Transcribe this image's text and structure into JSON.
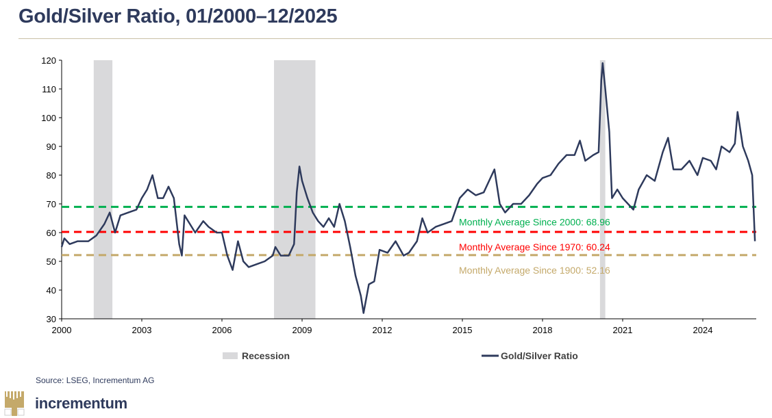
{
  "chart_data": {
    "type": "line",
    "title": "Gold/Silver Ratio, 01/2000–12/2025",
    "xlim": [
      2000,
      2026
    ],
    "ylim": [
      30,
      120
    ],
    "x_ticks": [
      "2000",
      "2003",
      "2006",
      "2009",
      "2012",
      "2015",
      "2018",
      "2021",
      "2024"
    ],
    "y_ticks": [
      "30",
      "40",
      "50",
      "60",
      "70",
      "80",
      "90",
      "100",
      "110",
      "120"
    ],
    "grid": false,
    "legend_placement": "bottom",
    "recessions": [
      [
        2001.2,
        2001.9
      ],
      [
        2007.95,
        2009.5
      ],
      [
        2020.15,
        2020.35
      ]
    ],
    "reference_lines": [
      {
        "label": "Monthly Average Since 2000: 68.96",
        "value": 68.96,
        "color": "#00b050"
      },
      {
        "label": "Monthly Average Since 1970: 60.24",
        "value": 60.24,
        "color": "#ff0000"
      },
      {
        "label": "Monthly Average Since 1900: 52.16",
        "value": 52.16,
        "color": "#c4a96a"
      }
    ],
    "series": [
      {
        "name": "Gold/Silver Ratio",
        "color": "#2e3a5c",
        "x": [
          2000.0,
          2000.1,
          2000.3,
          2000.6,
          2001.0,
          2001.3,
          2001.6,
          2001.8,
          2002.0,
          2002.2,
          2002.5,
          2002.8,
          2003.0,
          2003.2,
          2003.4,
          2003.6,
          2003.8,
          2004.0,
          2004.2,
          2004.4,
          2004.5,
          2004.6,
          2004.8,
          2005.0,
          2005.3,
          2005.5,
          2005.8,
          2006.0,
          2006.2,
          2006.4,
          2006.6,
          2006.8,
          2007.0,
          2007.3,
          2007.6,
          2007.9,
          2008.0,
          2008.2,
          2008.5,
          2008.7,
          2008.8,
          2008.9,
          2009.0,
          2009.2,
          2009.4,
          2009.6,
          2009.8,
          2010.0,
          2010.2,
          2010.4,
          2010.6,
          2010.8,
          2011.0,
          2011.2,
          2011.3,
          2011.5,
          2011.7,
          2011.9,
          2012.2,
          2012.5,
          2012.8,
          2013.0,
          2013.3,
          2013.5,
          2013.7,
          2014.0,
          2014.3,
          2014.6,
          2014.9,
          2015.2,
          2015.5,
          2015.8,
          2016.0,
          2016.2,
          2016.4,
          2016.6,
          2016.9,
          2017.2,
          2017.5,
          2017.8,
          2018.0,
          2018.3,
          2018.6,
          2018.9,
          2019.2,
          2019.4,
          2019.6,
          2019.9,
          2020.1,
          2020.2,
          2020.25,
          2020.35,
          2020.5,
          2020.6,
          2020.8,
          2021.0,
          2021.2,
          2021.4,
          2021.6,
          2021.9,
          2022.2,
          2022.5,
          2022.7,
          2022.9,
          2023.2,
          2023.5,
          2023.8,
          2024.0,
          2024.3,
          2024.5,
          2024.7,
          2025.0,
          2025.2,
          2025.3,
          2025.5,
          2025.7,
          2025.85,
          2025.95
        ],
        "values": [
          55,
          58,
          56,
          57,
          57,
          59,
          63,
          67,
          60,
          66,
          67,
          68,
          72,
          75,
          80,
          72,
          72,
          76,
          72,
          56,
          52,
          66,
          63,
          60,
          64,
          62,
          60,
          60,
          52,
          47,
          57,
          50,
          48,
          49,
          50,
          52,
          55,
          52,
          52,
          56,
          74,
          83,
          78,
          72,
          67,
          64,
          62,
          65,
          62,
          70,
          64,
          55,
          45,
          38,
          32,
          42,
          43,
          54,
          53,
          57,
          52,
          53,
          57,
          65,
          60,
          62,
          63,
          64,
          72,
          75,
          73,
          74,
          78,
          82,
          70,
          67,
          70,
          70,
          73,
          77,
          79,
          80,
          84,
          87,
          87,
          92,
          85,
          87,
          88,
          113,
          119,
          110,
          95,
          72,
          75,
          72,
          70,
          68,
          75,
          80,
          78,
          88,
          93,
          82,
          82,
          85,
          80,
          86,
          85,
          82,
          90,
          88,
          91,
          102,
          90,
          85,
          80,
          57
        ]
      }
    ],
    "legend": {
      "recession_label": "Recession",
      "series_label": "Gold/Silver Ratio"
    }
  },
  "footer": {
    "source": "Source: LSEG, Incrementum AG",
    "logo_text": "incrementum"
  }
}
